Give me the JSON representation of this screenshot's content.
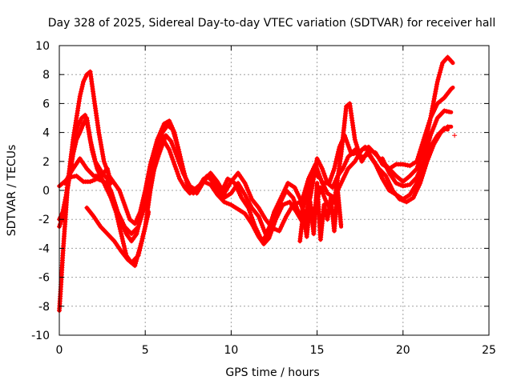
{
  "chart_data": {
    "type": "scatter",
    "title": "Day 328 of 2025, Sidereal Day-to-day VTEC variation (SDTVAR) for receiver hall",
    "xlabel": "GPS time / hours",
    "ylabel": "SDTVAR / TECUs",
    "xlim": [
      0,
      25
    ],
    "ylim": [
      -10,
      10
    ],
    "xticks": [
      0,
      5,
      10,
      15,
      20,
      25
    ],
    "yticks": [
      -10,
      -8,
      -6,
      -4,
      -2,
      0,
      2,
      4,
      6,
      8,
      10
    ],
    "grid": true,
    "marker": "+",
    "color": "#ff0000",
    "series": [
      {
        "name": "track-1",
        "points": [
          [
            0.0,
            -8.3
          ],
          [
            0.1,
            -6.5
          ],
          [
            0.2,
            -4.5
          ],
          [
            0.35,
            -2.0
          ],
          [
            0.5,
            0.5
          ],
          [
            0.7,
            2.5
          ],
          [
            0.9,
            3.8
          ],
          [
            1.1,
            4.5
          ],
          [
            1.3,
            5.0
          ],
          [
            1.5,
            5.2
          ],
          [
            1.7,
            4.2
          ],
          [
            1.9,
            2.8
          ],
          [
            2.2,
            1.5
          ],
          [
            2.6,
            0.5
          ],
          [
            3.0,
            -0.5
          ],
          [
            3.3,
            -1.5
          ],
          [
            3.6,
            -2.2
          ],
          [
            3.9,
            -3.0
          ],
          [
            4.2,
            -3.5
          ],
          [
            4.5,
            -3.0
          ],
          [
            4.8,
            -1.5
          ],
          [
            5.1,
            0.5
          ],
          [
            5.4,
            2.0
          ],
          [
            5.8,
            3.2
          ],
          [
            6.1,
            3.4
          ],
          [
            6.4,
            2.8
          ],
          [
            6.7,
            1.8
          ],
          [
            7.0,
            0.8
          ],
          [
            7.3,
            0.2
          ],
          [
            7.6,
            -0.2
          ],
          [
            8.0,
            0.2
          ],
          [
            8.4,
            0.6
          ],
          [
            8.8,
            0.4
          ],
          [
            9.2,
            -0.3
          ],
          [
            9.6,
            -0.8
          ],
          [
            10.0,
            -1.0
          ],
          [
            10.4,
            -1.3
          ],
          [
            10.8,
            -1.6
          ],
          [
            11.2,
            -2.3
          ],
          [
            11.6,
            -3.2
          ],
          [
            11.9,
            -3.7
          ],
          [
            12.2,
            -3.3
          ],
          [
            12.6,
            -2.0
          ],
          [
            13.0,
            -1.0
          ],
          [
            13.4,
            -0.8
          ],
          [
            13.8,
            -1.5
          ],
          [
            14.2,
            -2.3
          ],
          [
            14.6,
            -0.5
          ],
          [
            15.0,
            2.2
          ],
          [
            15.3,
            1.5
          ],
          [
            15.6,
            0.5
          ],
          [
            15.9,
            0.2
          ],
          [
            16.2,
            1.0
          ],
          [
            16.5,
            1.5
          ],
          [
            16.8,
            2.3
          ],
          [
            17.2,
            2.8
          ],
          [
            17.6,
            2.3
          ],
          [
            18.0,
            2.5
          ],
          [
            18.4,
            1.8
          ],
          [
            18.8,
            0.8
          ],
          [
            19.2,
            0.0
          ],
          [
            19.6,
            -0.3
          ],
          [
            20.0,
            -0.6
          ],
          [
            20.4,
            -0.3
          ],
          [
            20.8,
            0.5
          ],
          [
            21.2,
            1.8
          ],
          [
            21.6,
            3.0
          ],
          [
            22.0,
            3.8
          ],
          [
            22.4,
            4.3
          ],
          [
            22.6,
            4.2
          ]
        ]
      },
      {
        "name": "track-2",
        "points": [
          [
            0.0,
            -2.0
          ],
          [
            0.2,
            -1.5
          ],
          [
            0.4,
            -0.3
          ],
          [
            0.6,
            1.5
          ],
          [
            0.8,
            3.5
          ],
          [
            1.0,
            5.0
          ],
          [
            1.2,
            6.5
          ],
          [
            1.4,
            7.5
          ],
          [
            1.6,
            8.0
          ],
          [
            1.8,
            8.2
          ],
          [
            2.0,
            6.5
          ],
          [
            2.3,
            4.0
          ],
          [
            2.6,
            2.0
          ],
          [
            2.9,
            1.0
          ],
          [
            3.2,
            0.5
          ],
          [
            3.5,
            0.0
          ],
          [
            3.8,
            -1.0
          ],
          [
            4.1,
            -2.0
          ],
          [
            4.4,
            -2.3
          ],
          [
            4.7,
            -1.5
          ],
          [
            5.0,
            0.0
          ],
          [
            5.3,
            1.8
          ],
          [
            5.7,
            3.5
          ],
          [
            6.1,
            4.6
          ],
          [
            6.4,
            4.8
          ],
          [
            6.7,
            4.0
          ],
          [
            7.0,
            2.5
          ],
          [
            7.3,
            1.0
          ],
          [
            7.6,
            0.2
          ],
          [
            8.0,
            -0.2
          ],
          [
            8.4,
            0.6
          ],
          [
            8.8,
            1.2
          ],
          [
            9.2,
            0.6
          ],
          [
            9.6,
            -0.2
          ],
          [
            10.0,
            0.6
          ],
          [
            10.4,
            1.2
          ],
          [
            10.8,
            0.5
          ],
          [
            11.2,
            -0.6
          ],
          [
            11.6,
            -1.2
          ],
          [
            12.0,
            -2.0
          ],
          [
            12.4,
            -2.6
          ],
          [
            12.8,
            -2.8
          ],
          [
            13.2,
            -1.8
          ],
          [
            13.6,
            -1.0
          ],
          [
            14.0,
            -0.8
          ],
          [
            14.4,
            -2.0
          ],
          [
            14.8,
            -1.5
          ],
          [
            15.2,
            0.2
          ],
          [
            15.6,
            -1.0
          ],
          [
            16.0,
            -0.8
          ],
          [
            16.4,
            2.5
          ],
          [
            16.7,
            5.8
          ],
          [
            16.9,
            6.0
          ],
          [
            17.2,
            3.5
          ],
          [
            17.6,
            2.0
          ],
          [
            18.0,
            2.8
          ],
          [
            18.4,
            2.6
          ],
          [
            18.8,
            1.8
          ],
          [
            19.2,
            1.5
          ],
          [
            19.6,
            1.8
          ],
          [
            20.0,
            1.8
          ],
          [
            20.4,
            1.7
          ],
          [
            20.8,
            2.0
          ],
          [
            21.2,
            3.5
          ],
          [
            21.6,
            5.0
          ],
          [
            22.0,
            6.0
          ],
          [
            22.4,
            6.4
          ],
          [
            22.8,
            7.0
          ],
          [
            22.9,
            7.1
          ]
        ]
      },
      {
        "name": "track-3",
        "points": [
          [
            0.0,
            -2.5
          ],
          [
            0.2,
            -1.8
          ],
          [
            0.4,
            -0.5
          ],
          [
            0.6,
            1.0
          ],
          [
            0.8,
            2.5
          ],
          [
            1.0,
            3.5
          ],
          [
            1.2,
            4.0
          ],
          [
            1.4,
            4.6
          ],
          [
            1.6,
            5.0
          ],
          [
            1.8,
            3.5
          ],
          [
            2.1,
            2.0
          ],
          [
            2.5,
            1.2
          ],
          [
            2.8,
            0.8
          ],
          [
            3.0,
            -0.3
          ],
          [
            3.3,
            -1.5
          ],
          [
            3.6,
            -3.0
          ],
          [
            3.9,
            -4.5
          ],
          [
            4.2,
            -5.0
          ],
          [
            4.6,
            -4.5
          ],
          [
            5.0,
            -2.5
          ],
          [
            5.3,
            0.0
          ],
          [
            5.6,
            2.0
          ],
          [
            6.0,
            4.0
          ],
          [
            6.3,
            4.5
          ],
          [
            6.6,
            4.2
          ],
          [
            6.9,
            3.0
          ],
          [
            7.2,
            1.5
          ],
          [
            7.5,
            0.2
          ],
          [
            7.8,
            -0.2
          ],
          [
            8.2,
            0.4
          ],
          [
            8.6,
            1.0
          ],
          [
            9.0,
            0.5
          ],
          [
            9.4,
            -0.2
          ],
          [
            9.8,
            0.8
          ],
          [
            10.2,
            0.5
          ],
          [
            10.6,
            -0.5
          ],
          [
            11.0,
            -1.2
          ],
          [
            11.4,
            -2.5
          ],
          [
            11.8,
            -3.5
          ],
          [
            12.1,
            -3.0
          ],
          [
            12.5,
            -1.5
          ],
          [
            12.9,
            -0.5
          ],
          [
            13.3,
            0.5
          ],
          [
            13.7,
            0.2
          ],
          [
            14.1,
            -0.8
          ],
          [
            14.5,
            0.8
          ],
          [
            14.9,
            1.8
          ],
          [
            15.3,
            0.5
          ],
          [
            15.7,
            0.5
          ],
          [
            16.0,
            1.5
          ],
          [
            16.3,
            3.0
          ],
          [
            16.6,
            3.8
          ],
          [
            17.0,
            2.5
          ],
          [
            17.4,
            2.6
          ],
          [
            17.8,
            3.0
          ],
          [
            18.2,
            2.2
          ],
          [
            18.6,
            1.5
          ],
          [
            19.0,
            1.0
          ],
          [
            19.4,
            0.0
          ],
          [
            19.8,
            -0.6
          ],
          [
            20.2,
            -0.8
          ],
          [
            20.6,
            -0.5
          ],
          [
            21.0,
            0.5
          ],
          [
            21.4,
            2.0
          ],
          [
            21.8,
            3.2
          ],
          [
            22.2,
            4.0
          ],
          [
            22.6,
            4.4
          ],
          [
            22.8,
            4.4
          ]
        ]
      },
      {
        "name": "track-4",
        "points": [
          [
            0.0,
            0.3
          ],
          [
            0.3,
            0.6
          ],
          [
            0.6,
            0.9
          ],
          [
            1.0,
            1.0
          ],
          [
            1.4,
            0.6
          ],
          [
            1.8,
            0.6
          ],
          [
            2.2,
            0.8
          ],
          [
            2.6,
            0.6
          ],
          [
            3.0,
            0.0
          ],
          [
            3.4,
            -1.5
          ],
          [
            3.8,
            -2.5
          ],
          [
            4.2,
            -3.0
          ],
          [
            4.6,
            -2.5
          ],
          [
            5.0,
            -1.0
          ],
          [
            5.4,
            1.0
          ],
          [
            5.8,
            2.5
          ],
          [
            6.2,
            3.8
          ],
          [
            6.5,
            3.4
          ],
          [
            6.8,
            2.5
          ],
          [
            7.2,
            1.2
          ],
          [
            7.6,
            0.3
          ],
          [
            8.0,
            0.0
          ],
          [
            8.4,
            0.8
          ],
          [
            8.8,
            1.0
          ],
          [
            9.2,
            0.2
          ],
          [
            9.6,
            -0.5
          ],
          [
            10.0,
            -0.2
          ],
          [
            10.4,
            0.5
          ],
          [
            10.8,
            -0.3
          ],
          [
            11.2,
            -1.2
          ],
          [
            11.6,
            -1.8
          ],
          [
            12.0,
            -3.0
          ],
          [
            12.4,
            -2.2
          ],
          [
            12.8,
            -1.0
          ],
          [
            13.2,
            0.0
          ],
          [
            13.6,
            -0.5
          ],
          [
            14.0,
            -1.8
          ],
          [
            14.4,
            -0.5
          ],
          [
            14.8,
            1.2
          ],
          [
            15.2,
            0.8
          ],
          [
            15.6,
            -0.2
          ],
          [
            16.0,
            -0.5
          ],
          [
            16.4,
            0.5
          ],
          [
            16.8,
            1.5
          ],
          [
            17.2,
            2.0
          ],
          [
            17.6,
            2.8
          ],
          [
            18.0,
            3.0
          ],
          [
            18.4,
            2.5
          ],
          [
            18.8,
            2.0
          ],
          [
            19.2,
            1.5
          ],
          [
            19.6,
            1.0
          ],
          [
            20.0,
            0.6
          ],
          [
            20.4,
            1.0
          ],
          [
            20.8,
            1.5
          ],
          [
            21.2,
            2.8
          ],
          [
            21.6,
            5.0
          ],
          [
            22.0,
            7.5
          ],
          [
            22.3,
            8.8
          ],
          [
            22.6,
            9.2
          ],
          [
            22.9,
            8.8
          ]
        ]
      },
      {
        "name": "track-5",
        "points": [
          [
            1.6,
            -1.2
          ],
          [
            1.8,
            -1.5
          ],
          [
            2.0,
            -1.8
          ],
          [
            2.4,
            -2.5
          ],
          [
            2.8,
            -3.0
          ],
          [
            3.2,
            -3.5
          ],
          [
            3.6,
            -4.2
          ],
          [
            4.0,
            -4.8
          ],
          [
            4.4,
            -5.2
          ],
          [
            4.8,
            -3.5
          ],
          [
            5.2,
            -1.5
          ]
        ]
      },
      {
        "name": "track-6",
        "points": [
          [
            0.3,
            0.5
          ],
          [
            0.8,
            1.5
          ],
          [
            1.2,
            2.2
          ],
          [
            1.6,
            1.5
          ],
          [
            2.0,
            1.0
          ],
          [
            2.4,
            1.0
          ],
          [
            2.8,
            1.5
          ],
          [
            3.0,
            0.5
          ]
        ]
      },
      {
        "name": "track-7",
        "points": [
          [
            18.8,
            2.2
          ],
          [
            19.2,
            1.2
          ],
          [
            19.6,
            0.5
          ],
          [
            20.0,
            0.3
          ],
          [
            20.4,
            0.4
          ],
          [
            20.8,
            0.9
          ],
          [
            21.2,
            2.0
          ],
          [
            21.6,
            3.8
          ],
          [
            22.0,
            5.0
          ],
          [
            22.4,
            5.5
          ],
          [
            22.8,
            5.4
          ]
        ]
      },
      {
        "name": "track-8",
        "points": [
          [
            14.0,
            -3.5
          ],
          [
            14.2,
            -1.5
          ],
          [
            14.4,
            -3.2
          ],
          [
            14.6,
            -0.8
          ],
          [
            14.8,
            -3.0
          ],
          [
            15.0,
            0.5
          ],
          [
            15.2,
            -3.4
          ],
          [
            15.4,
            -1.0
          ],
          [
            15.6,
            -2.0
          ],
          [
            15.8,
            -0.5
          ],
          [
            16.0,
            -2.8
          ],
          [
            16.2,
            0.0
          ],
          [
            16.4,
            -2.5
          ]
        ]
      }
    ],
    "outlier_points": [
      [
        23.0,
        3.8
      ]
    ]
  }
}
